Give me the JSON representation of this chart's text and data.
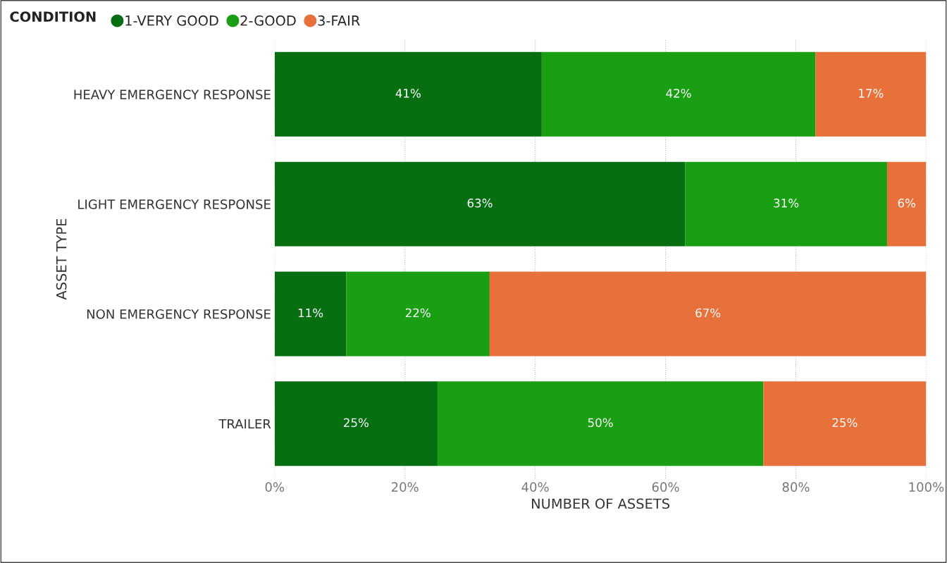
{
  "chart_data": {
    "type": "bar",
    "orientation": "horizontal",
    "stacked": true,
    "xlabel": "NUMBER OF ASSETS",
    "ylabel": "ASSET TYPE",
    "legend_title": "CONDITION",
    "legend": "top left",
    "categories": [
      "HEAVY EMERGENCY RESPONSE",
      "LIGHT EMERGENCY RESPONSE",
      "NON EMERGENCY RESPONSE",
      "TRAILER"
    ],
    "series": [
      {
        "name": "1-VERY GOOD",
        "color": "#076e12",
        "values": [
          41,
          63,
          11,
          25
        ],
        "value_labels": [
          "41%",
          "63%",
          "11%",
          "25%"
        ]
      },
      {
        "name": "2-GOOD",
        "color": "#1a9e14",
        "values": [
          42,
          31,
          22,
          50
        ],
        "value_labels": [
          "42%",
          "31%",
          "22%",
          "50%"
        ]
      },
      {
        "name": "3-FAIR",
        "color": "#e8703a",
        "values": [
          17,
          6,
          67,
          25
        ],
        "value_labels": [
          "17%",
          "6%",
          "67%",
          "25%"
        ]
      }
    ],
    "xlim": [
      0,
      100
    ],
    "xticks": [
      {
        "value": 0,
        "label": "0%"
      },
      {
        "value": 20,
        "label": "20%"
      },
      {
        "value": 40,
        "label": "40%"
      },
      {
        "value": 60,
        "label": "60%"
      },
      {
        "value": 80,
        "label": "80%"
      },
      {
        "value": 100,
        "label": "100%"
      }
    ],
    "grid": "x"
  }
}
